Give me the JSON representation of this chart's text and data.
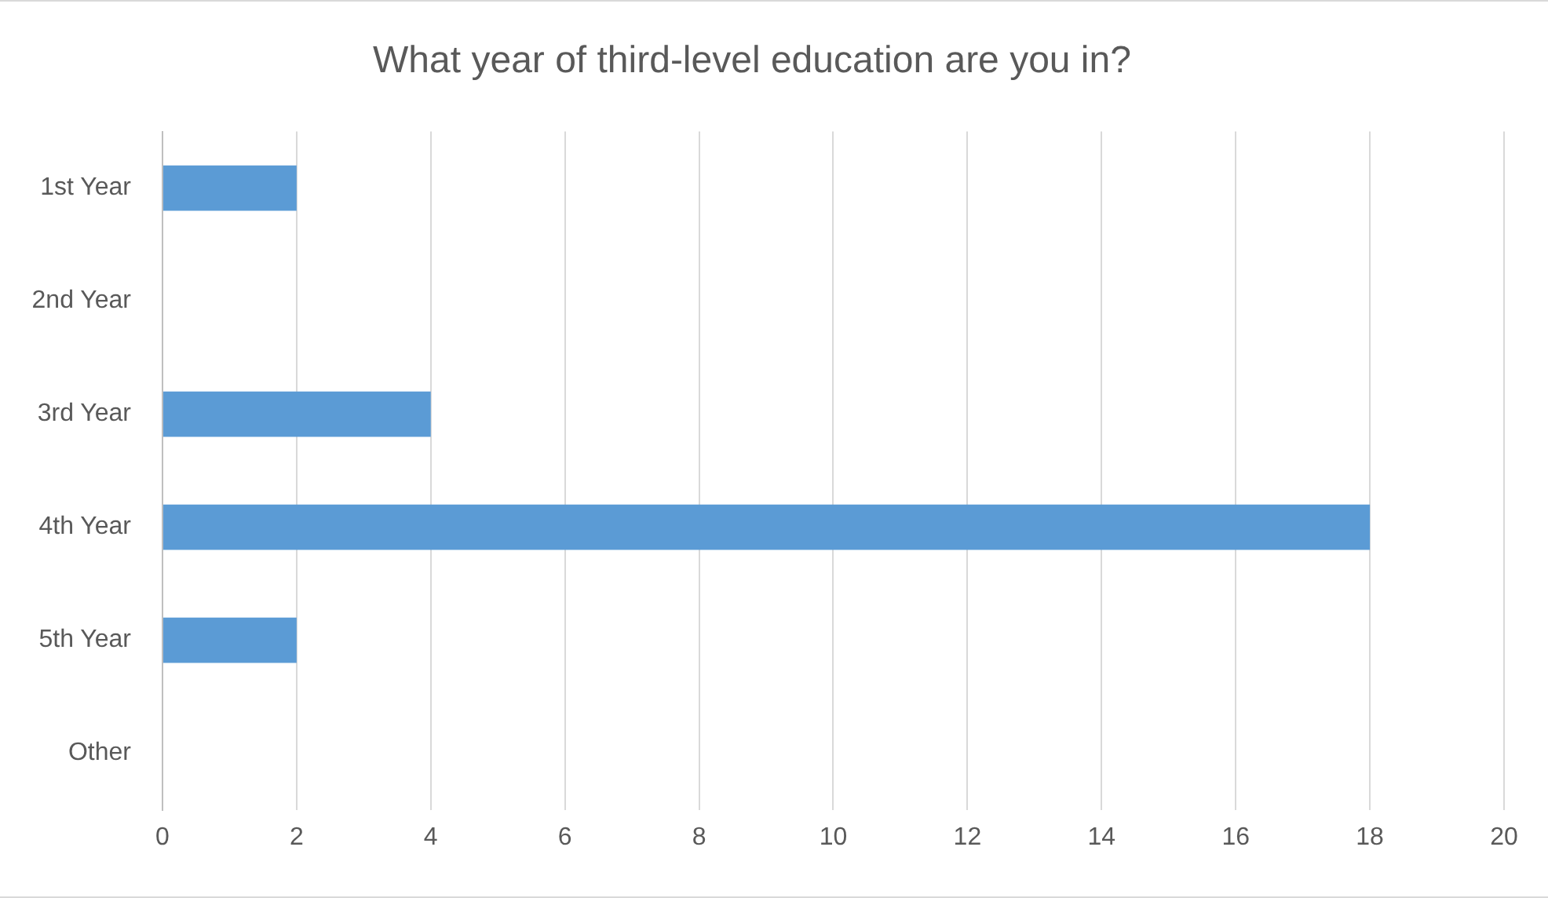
{
  "chart_data": {
    "type": "bar",
    "orientation": "horizontal",
    "title": "What year of third-level education are you in?",
    "categories": [
      "1st Year",
      "2nd Year",
      "3rd Year",
      "4th Year",
      "5th Year",
      "Other"
    ],
    "values": [
      2,
      0,
      4,
      18,
      2,
      0
    ],
    "color": "#5b9bd5",
    "xlim": [
      0,
      20
    ],
    "xticks": [
      0,
      2,
      4,
      6,
      8,
      10,
      12,
      14,
      16,
      18,
      20
    ],
    "grid": "x",
    "legend": false
  }
}
